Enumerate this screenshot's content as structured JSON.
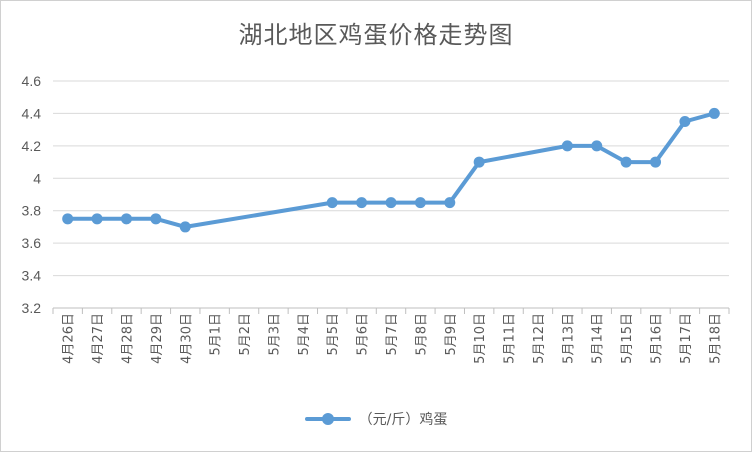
{
  "chart_data": {
    "type": "line",
    "title": "湖北地区鸡蛋价格走势图",
    "categories": [
      "4月26日",
      "4月27日",
      "4月28日",
      "4月29日",
      "4月30日",
      "5月1日",
      "5月2日",
      "5月3日",
      "5月4日",
      "5月5日",
      "5月6日",
      "5月7日",
      "5月8日",
      "5月9日",
      "5月10日",
      "5月11日",
      "5月12日",
      "5月13日",
      "5月14日",
      "5月15日",
      "5月16日",
      "5月17日",
      "5月18日"
    ],
    "series": [
      {
        "name": "（元/斤）鸡蛋",
        "color": "#5b9bd5",
        "values": [
          3.75,
          3.75,
          3.75,
          3.75,
          3.7,
          null,
          null,
          null,
          null,
          3.85,
          3.85,
          3.85,
          3.85,
          3.85,
          4.1,
          null,
          null,
          4.2,
          4.2,
          4.1,
          4.1,
          4.35,
          4.4
        ]
      }
    ],
    "ylim": [
      3.2,
      4.6
    ],
    "yticks": [
      3.2,
      3.4,
      3.6,
      3.8,
      4,
      4.2,
      4.4,
      4.6
    ],
    "ytick_labels": [
      "3.2",
      "3.4",
      "3.6",
      "3.8",
      "4",
      "4.2",
      "4.4",
      "4.6"
    ],
    "grid": true,
    "legend": "bottom"
  }
}
